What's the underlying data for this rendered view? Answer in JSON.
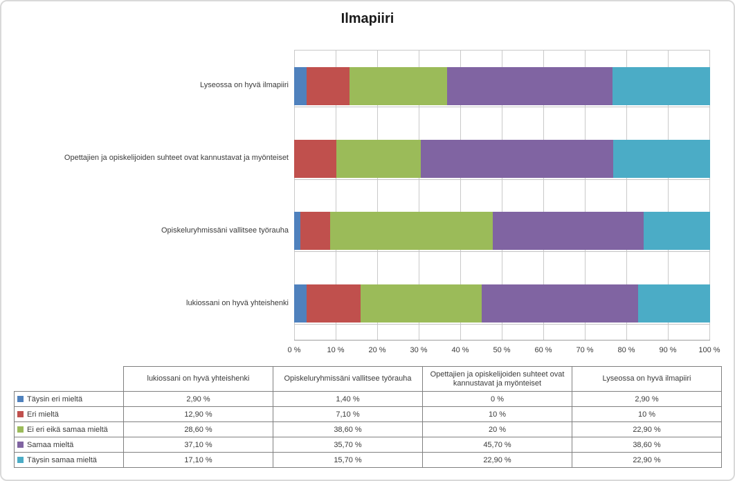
{
  "title": "Ilmapiiri",
  "colors": {
    "series": [
      "#4F81BD",
      "#C0504D",
      "#9BBB59",
      "#8064A2",
      "#4BACC6"
    ],
    "gridline": "#c9c9c9",
    "axis_line": "#9c9c9c",
    "table_border": "#7f7f7f",
    "frame_border": "#d9d9d9"
  },
  "chart_data": {
    "type": "bar",
    "subtype": "stacked-100-percent",
    "orientation": "horizontal",
    "title": "Ilmapiiri",
    "grid": "vertical-major",
    "legend_position": "data-table-left-column",
    "series_names": [
      "Täysin eri mieltä",
      "Eri mieltä",
      "Ei eri eikä samaa mieltä",
      "Samaa mieltä",
      "Täysin samaa mieltä"
    ],
    "series_colors": [
      "#4F81BD",
      "#C0504D",
      "#9BBB59",
      "#8064A2",
      "#4BACC6"
    ],
    "rows_top_to_bottom": [
      {
        "category": "Lyseossa on hyvä ilmapiiri",
        "values": [
          2.9,
          10,
          22.9,
          38.6,
          22.9
        ]
      },
      {
        "category": "Opettajien ja opiskelijoiden suhteet ovat kannustavat ja myönteiset",
        "values": [
          0,
          10,
          20,
          45.7,
          22.9
        ]
      },
      {
        "category": "Opiskeluryhmissäni vallitsee työrauha",
        "values": [
          1.4,
          7.1,
          38.6,
          35.7,
          15.7
        ]
      },
      {
        "category": "lukiossani on hyvä yhteishenki",
        "values": [
          2.9,
          12.9,
          28.6,
          37.1,
          17.1
        ]
      }
    ],
    "x_axis": {
      "min": 0,
      "max": 100,
      "tick_labels": [
        "0 %",
        "10 %",
        "20 %",
        "30 %",
        "40 %",
        "50 %",
        "60 %",
        "70 %",
        "80 %",
        "90 %",
        "100 %"
      ]
    }
  },
  "table": {
    "corner": "",
    "col_headers": [
      "lukiossani on hyvä yhteishenki",
      "Opiskeluryhmissäni vallitsee työrauha",
      "Opettajien ja opiskelijoiden suhteet ovat kannustavat ja myönteiset",
      "Lyseossa on hyvä ilmapiiri"
    ],
    "rows": [
      {
        "label": "Täysin eri mieltä",
        "swatch_color": "#4F81BD",
        "cells": [
          "2,90 %",
          "1,40 %",
          "0 %",
          "2,90 %"
        ]
      },
      {
        "label": "Eri mieltä",
        "swatch_color": "#C0504D",
        "cells": [
          "12,90 %",
          "7,10 %",
          "10 %",
          "10 %"
        ]
      },
      {
        "label": "Ei eri eikä samaa mieltä",
        "swatch_color": "#9BBB59",
        "cells": [
          "28,60 %",
          "38,60 %",
          "20 %",
          "22,90 %"
        ]
      },
      {
        "label": "Samaa mieltä",
        "swatch_color": "#8064A2",
        "cells": [
          "37,10 %",
          "35,70 %",
          "45,70 %",
          "38,60 %"
        ]
      },
      {
        "label": "Täysin samaa mieltä",
        "swatch_color": "#4BACC6",
        "cells": [
          "17,10 %",
          "15,70 %",
          "22,90 %",
          "22,90 %"
        ]
      }
    ]
  }
}
